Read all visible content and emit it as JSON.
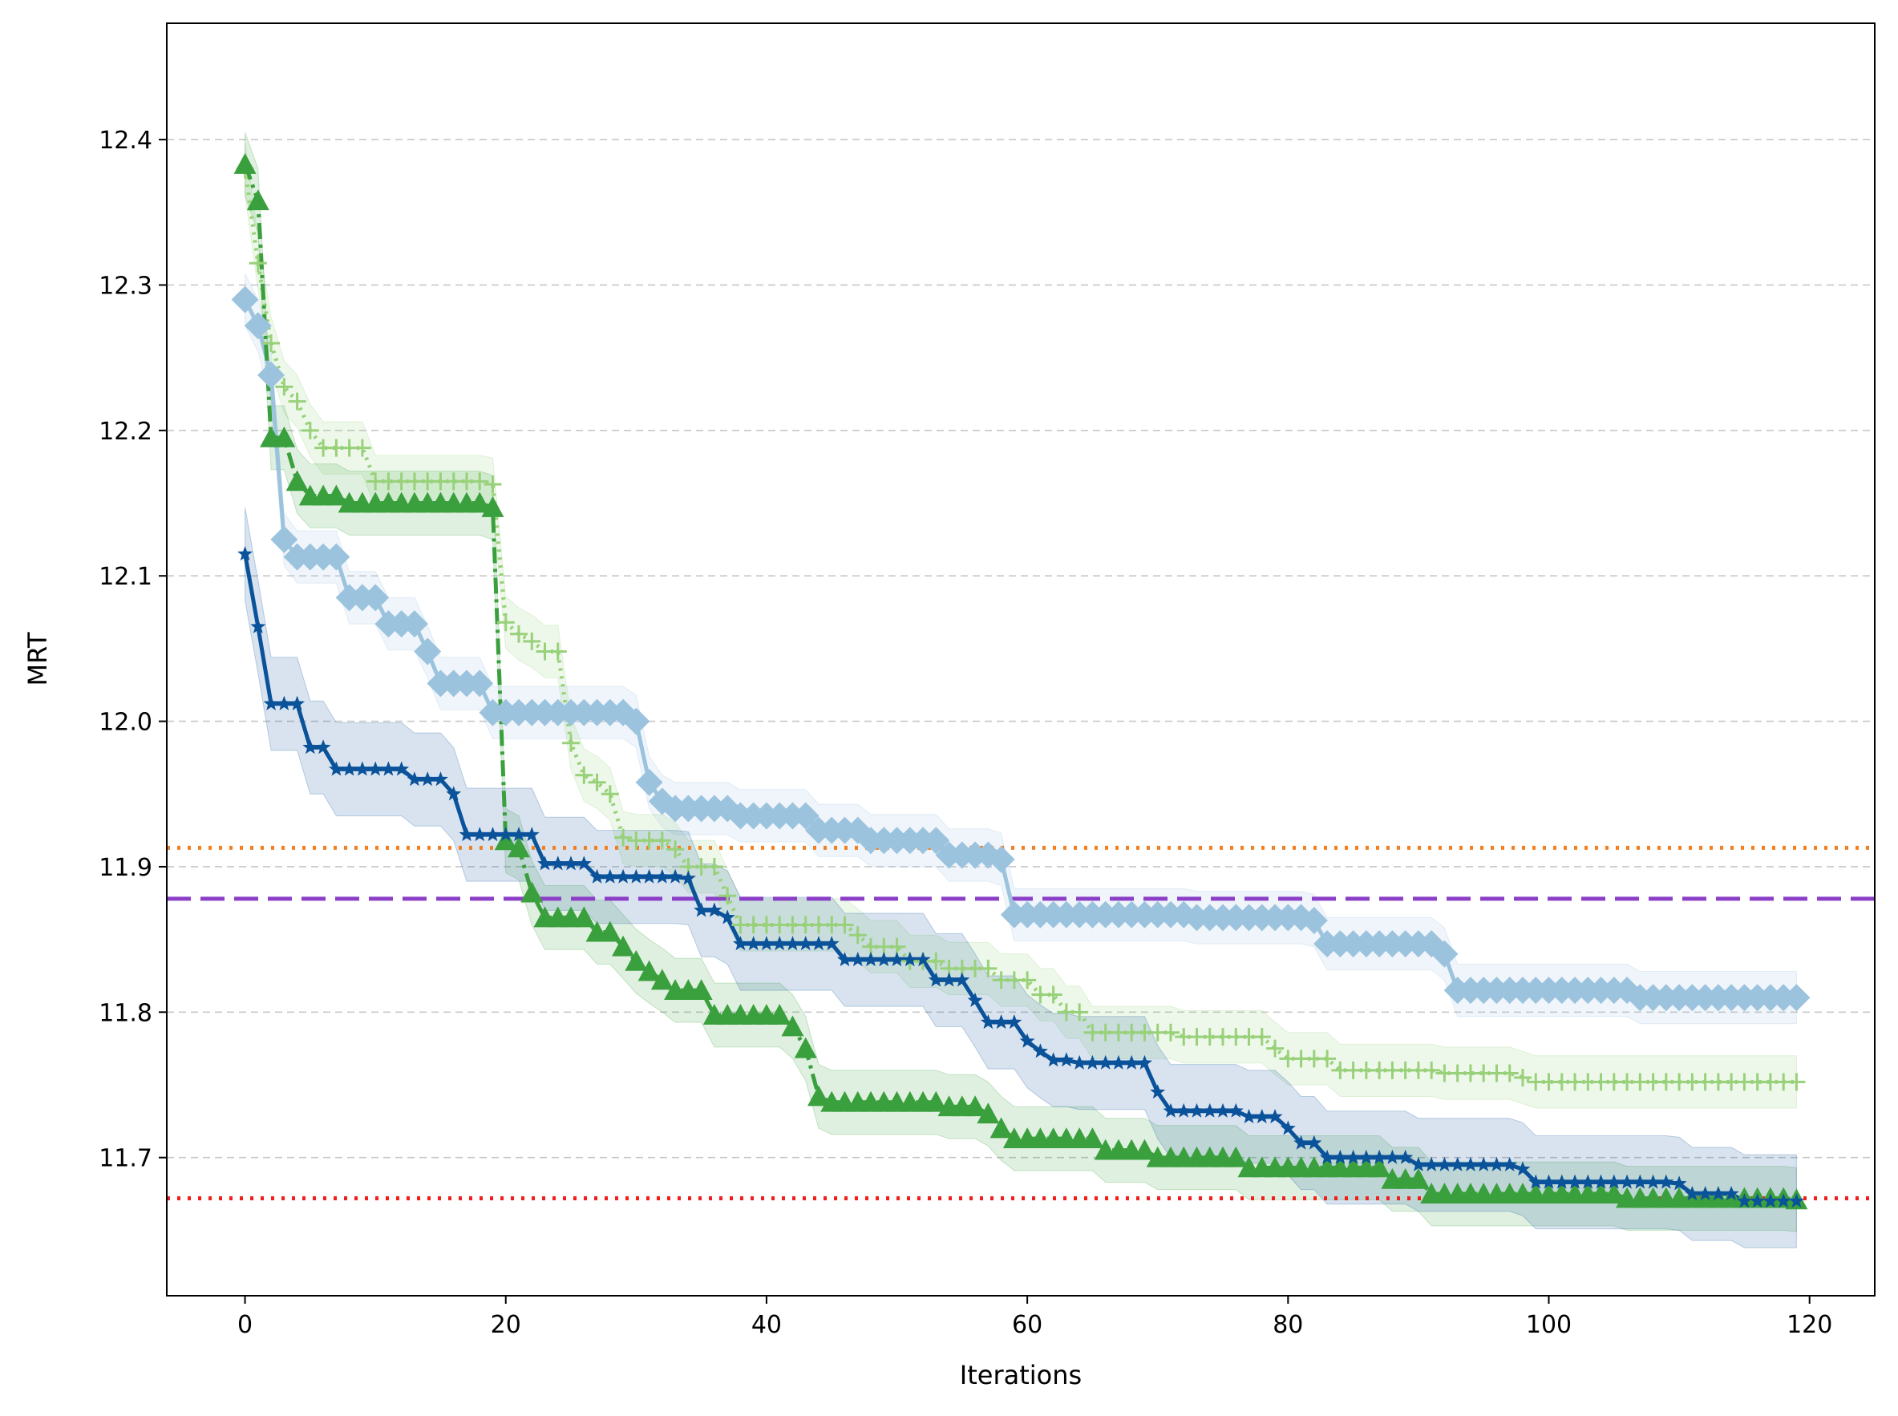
{
  "chart_data": {
    "type": "line",
    "title": "",
    "xlabel": "Iterations",
    "ylabel": "MRT",
    "xlim": [
      -6,
      125
    ],
    "ylim": [
      11.605,
      12.48
    ],
    "xticks": [
      0,
      20,
      40,
      60,
      80,
      100,
      120
    ],
    "xtick_labels": [
      "0",
      "20",
      "40",
      "60",
      "80",
      "100",
      "120"
    ],
    "yticks": [
      11.7,
      11.8,
      11.9,
      12.0,
      12.1,
      12.2,
      12.3,
      12.4
    ],
    "ytick_labels": [
      "11.7",
      "11.8",
      "11.9",
      "12.0",
      "12.1",
      "12.2",
      "12.3",
      "12.4"
    ],
    "grid": "horizontal dashed",
    "legend": "none",
    "reference_lines": [
      {
        "y": 11.913,
        "color": "#f28022",
        "style": "dotted"
      },
      {
        "y": 11.878,
        "color": "#8b3fc7",
        "style": "dashed"
      },
      {
        "y": 11.672,
        "color": "#f21d1d",
        "style": "dotted"
      }
    ],
    "series": [
      {
        "color": "#9cc3de",
        "marker": "diamond",
        "line": "solid",
        "band": 0.018,
        "steps": [
          [
            0,
            12.29
          ],
          [
            1,
            12.272
          ],
          [
            2,
            12.238
          ],
          [
            3,
            12.125
          ],
          [
            4,
            12.113
          ],
          [
            8,
            12.085
          ],
          [
            11,
            12.067
          ],
          [
            14,
            12.048
          ],
          [
            15,
            12.026
          ],
          [
            19,
            12.006
          ],
          [
            30,
            12.0
          ],
          [
            31,
            11.958
          ],
          [
            32,
            11.945
          ],
          [
            33,
            11.94
          ],
          [
            38,
            11.935
          ],
          [
            44,
            11.925
          ],
          [
            48,
            11.918
          ],
          [
            54,
            11.908
          ],
          [
            58,
            11.905
          ],
          [
            59,
            11.867
          ],
          [
            73,
            11.865
          ],
          [
            82,
            11.863
          ],
          [
            83,
            11.847
          ],
          [
            92,
            11.84
          ],
          [
            93,
            11.815
          ],
          [
            107,
            11.81
          ],
          [
            119,
            11.81
          ]
        ]
      },
      {
        "color": "#98d17a",
        "marker": "plus",
        "line": "dotted",
        "band": 0.018,
        "steps": [
          [
            0,
            12.38
          ],
          [
            1,
            12.315
          ],
          [
            2,
            12.26
          ],
          [
            3,
            12.23
          ],
          [
            4,
            12.22
          ],
          [
            5,
            12.2
          ],
          [
            6,
            12.188
          ],
          [
            10,
            12.165
          ],
          [
            19,
            12.163
          ],
          [
            20,
            12.068
          ],
          [
            21,
            12.06
          ],
          [
            22,
            12.055
          ],
          [
            23,
            12.048
          ],
          [
            25,
            11.985
          ],
          [
            26,
            11.963
          ],
          [
            27,
            11.958
          ],
          [
            28,
            11.95
          ],
          [
            29,
            11.92
          ],
          [
            30,
            11.918
          ],
          [
            33,
            11.912
          ],
          [
            34,
            11.9
          ],
          [
            37,
            11.88
          ],
          [
            38,
            11.86
          ],
          [
            47,
            11.853
          ],
          [
            48,
            11.845
          ],
          [
            51,
            11.835
          ],
          [
            54,
            11.83
          ],
          [
            58,
            11.822
          ],
          [
            61,
            11.812
          ],
          [
            63,
            11.8
          ],
          [
            65,
            11.786
          ],
          [
            72,
            11.783
          ],
          [
            79,
            11.775
          ],
          [
            80,
            11.768
          ],
          [
            84,
            11.76
          ],
          [
            92,
            11.758
          ],
          [
            98,
            11.755
          ],
          [
            99,
            11.752
          ],
          [
            119,
            11.752
          ]
        ]
      },
      {
        "color": "#3a9f3d",
        "marker": "triangle",
        "line": "dashdot",
        "band": 0.022,
        "steps": [
          [
            0,
            12.383
          ],
          [
            1,
            12.358
          ],
          [
            2,
            12.195
          ],
          [
            4,
            12.165
          ],
          [
            5,
            12.155
          ],
          [
            8,
            12.15
          ],
          [
            19,
            12.147
          ],
          [
            20,
            11.918
          ],
          [
            21,
            11.913
          ],
          [
            22,
            11.882
          ],
          [
            23,
            11.865
          ],
          [
            27,
            11.855
          ],
          [
            29,
            11.845
          ],
          [
            30,
            11.835
          ],
          [
            31,
            11.828
          ],
          [
            32,
            11.822
          ],
          [
            33,
            11.815
          ],
          [
            36,
            11.798
          ],
          [
            42,
            11.79
          ],
          [
            43,
            11.775
          ],
          [
            44,
            11.742
          ],
          [
            45,
            11.738
          ],
          [
            54,
            11.735
          ],
          [
            57,
            11.73
          ],
          [
            58,
            11.72
          ],
          [
            59,
            11.713
          ],
          [
            66,
            11.705
          ],
          [
            70,
            11.7
          ],
          [
            77,
            11.693
          ],
          [
            88,
            11.685
          ],
          [
            91,
            11.675
          ],
          [
            106,
            11.672
          ],
          [
            119,
            11.671
          ]
        ]
      },
      {
        "color": "#0a529a",
        "marker": "star",
        "line": "solid",
        "band": 0.032,
        "steps": [
          [
            0,
            12.115
          ],
          [
            1,
            12.065
          ],
          [
            2,
            12.012
          ],
          [
            5,
            11.982
          ],
          [
            7,
            11.967
          ],
          [
            13,
            11.96
          ],
          [
            16,
            11.95
          ],
          [
            17,
            11.922
          ],
          [
            23,
            11.902
          ],
          [
            27,
            11.893
          ],
          [
            34,
            11.892
          ],
          [
            35,
            11.87
          ],
          [
            37,
            11.865
          ],
          [
            38,
            11.847
          ],
          [
            46,
            11.836
          ],
          [
            53,
            11.822
          ],
          [
            56,
            11.808
          ],
          [
            57,
            11.793
          ],
          [
            60,
            11.78
          ],
          [
            61,
            11.773
          ],
          [
            62,
            11.767
          ],
          [
            64,
            11.765
          ],
          [
            70,
            11.745
          ],
          [
            71,
            11.732
          ],
          [
            77,
            11.728
          ],
          [
            80,
            11.72
          ],
          [
            81,
            11.71
          ],
          [
            83,
            11.7
          ],
          [
            90,
            11.695
          ],
          [
            98,
            11.692
          ],
          [
            99,
            11.683
          ],
          [
            110,
            11.682
          ],
          [
            111,
            11.675
          ],
          [
            115,
            11.67
          ],
          [
            119,
            11.67
          ]
        ]
      }
    ]
  }
}
